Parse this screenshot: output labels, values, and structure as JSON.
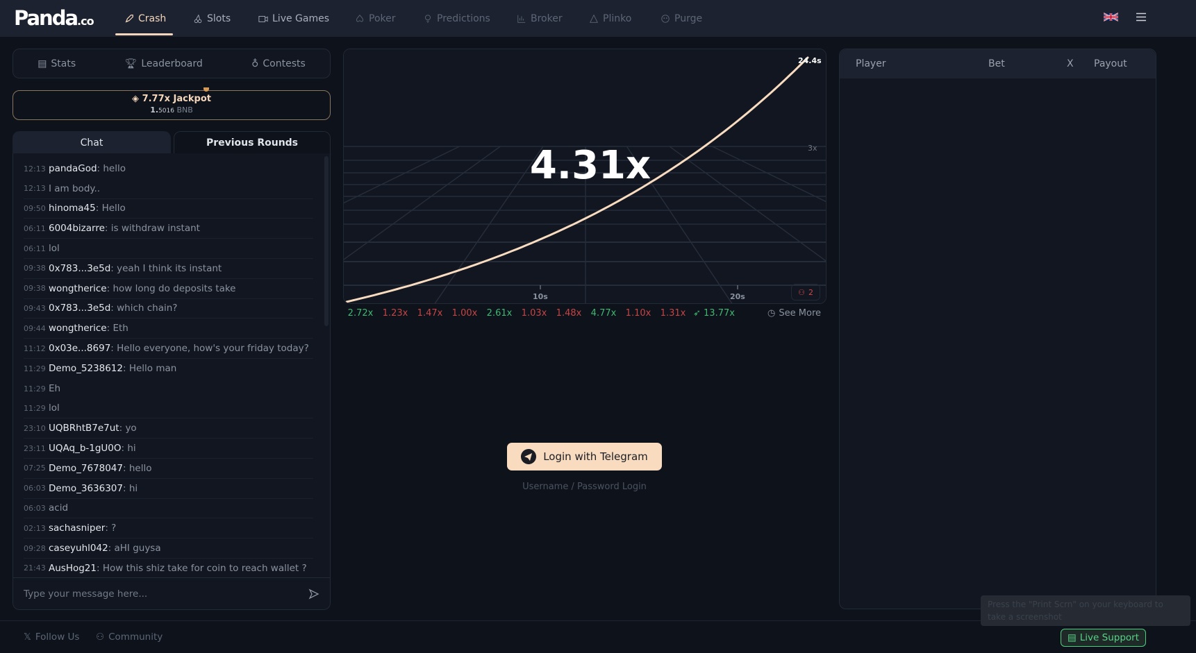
{
  "header": {
    "logo_main": "Panda",
    "logo_suffix": ".co",
    "nav": [
      {
        "label": "Crash",
        "icon": "rocket-icon"
      },
      {
        "label": "Slots",
        "icon": "cherries-icon"
      },
      {
        "label": "Live Games",
        "icon": "video-icon"
      },
      {
        "label": "Poker",
        "icon": "spade-icon"
      },
      {
        "label": "Predictions",
        "icon": "bulb-icon"
      },
      {
        "label": "Broker",
        "icon": "chart-icon"
      },
      {
        "label": "Plinko",
        "icon": "triangle-icon"
      },
      {
        "label": "Purge",
        "icon": "skull-icon"
      }
    ],
    "language_icon": "uk-flag-icon",
    "menu_icon": "hamburger-icon"
  },
  "stats_bar": {
    "stats": "Stats",
    "leaderboard": "Leaderboard",
    "contests": "Contests"
  },
  "jackpot": {
    "title": "7.77x Jackpot",
    "amount_int": "1.",
    "amount_dec": "5016",
    "currency": "BNB"
  },
  "tabs": {
    "chat": "Chat",
    "previous_rounds": "Previous Rounds"
  },
  "chat": {
    "messages": [
      {
        "time": "12:13",
        "user": "pandaGod",
        "text": "hello"
      },
      {
        "time": "12:13",
        "user": "",
        "text": "I am body.."
      },
      {
        "time": "09:50",
        "user": "hinoma45",
        "text": "Hello"
      },
      {
        "time": "06:11",
        "user": "6004bizarre",
        "text": "is withdraw instant"
      },
      {
        "time": "06:11",
        "user": "",
        "text": "lol"
      },
      {
        "time": "09:38",
        "user": "0x783...3e5d",
        "text": "yeah I think its instant"
      },
      {
        "time": "09:38",
        "user": "wongtherice",
        "text": "how long do deposits take"
      },
      {
        "time": "09:43",
        "user": "0x783...3e5d",
        "text": "which chain?"
      },
      {
        "time": "09:44",
        "user": "wongtherice",
        "text": "Eth"
      },
      {
        "time": "11:12",
        "user": "0x03e...8697",
        "text": "Hello everyone, how's your friday today?"
      },
      {
        "time": "11:29",
        "user": "Demo_5238612",
        "text": "Hello man"
      },
      {
        "time": "11:29",
        "user": "",
        "text": "Eh"
      },
      {
        "time": "11:29",
        "user": "",
        "text": "lol"
      },
      {
        "time": "23:10",
        "user": "UQBRhtB7e7ut",
        "text": "yo"
      },
      {
        "time": "23:11",
        "user": "UQAq_b-1gU0O",
        "text": "hi"
      },
      {
        "time": "07:25",
        "user": "Demo_7678047",
        "text": "hello"
      },
      {
        "time": "06:03",
        "user": "Demo_3636307",
        "text": "hi"
      },
      {
        "time": "06:03",
        "user": "",
        "text": "acid"
      },
      {
        "time": "02:13",
        "user": "sachasniper",
        "text": "?"
      },
      {
        "time": "09:28",
        "user": "caseyuhl042",
        "text": "aHI guysa"
      },
      {
        "time": "21:43",
        "user": "AusHog21",
        "text": "How this shiz take for coin to reach wallet ?"
      }
    ],
    "input_placeholder": "Type your message here...",
    "send_icon": "send-icon"
  },
  "chart_data": {
    "type": "line",
    "current_multiplier": "4.31x",
    "elapsed_label": "24.4s",
    "x_ticks": [
      "10s",
      "20s"
    ],
    "y_ticks": [
      "3x"
    ],
    "xlim": [
      0,
      24.4
    ],
    "curve": {
      "t_end": 24.4,
      "multiplier_end": 4.31,
      "shape": "exponential"
    },
    "line_color": "#f9dcc0",
    "players_count": "2"
  },
  "previous_rounds": [
    {
      "value": "2.72x",
      "color": "#3fb871"
    },
    {
      "value": "1.23x",
      "color": "#c74545"
    },
    {
      "value": "1.47x",
      "color": "#c74545"
    },
    {
      "value": "1.00x",
      "color": "#c74545"
    },
    {
      "value": "2.61x",
      "color": "#3fb871"
    },
    {
      "value": "1.03x",
      "color": "#c74545"
    },
    {
      "value": "1.48x",
      "color": "#c74545"
    },
    {
      "value": "4.77x",
      "color": "#3fb871"
    },
    {
      "value": "1.10x",
      "color": "#c74545"
    },
    {
      "value": "1.31x",
      "color": "#c74545"
    },
    {
      "value": "13.77x",
      "color": "#3fb871"
    }
  ],
  "see_more": "See More",
  "auth": {
    "telegram": "Login with Telegram",
    "password": "Username / Password Login"
  },
  "bets_table": {
    "columns": [
      "Player",
      "Bet",
      "X",
      "Payout"
    ]
  },
  "footer": {
    "follow": "Follow Us",
    "community": "Community"
  },
  "toast": "Press the \"Print Scrn\" on your keyboard to take a screenshot",
  "support": "Live Support"
}
